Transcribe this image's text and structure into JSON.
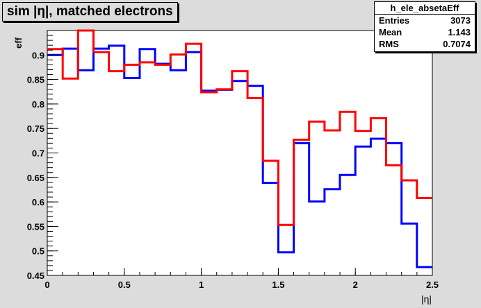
{
  "title": "sim |η|, matched electrons",
  "stats": {
    "name": "h_ele_absetaEff",
    "rows": [
      {
        "label": "Entries",
        "value": "3073"
      },
      {
        "label": "Mean",
        "value": "1.143"
      },
      {
        "label": "RMS",
        "value": "0.7074"
      }
    ]
  },
  "chart_data": {
    "type": "line",
    "step": true,
    "xlabel": "|η|",
    "ylabel": "eff",
    "xlim": [
      0,
      2.5
    ],
    "ylim": [
      0.45,
      0.95
    ],
    "xticks": [
      "0",
      "0.5",
      "1",
      "1.5",
      "2",
      "2.5"
    ],
    "yticks": [
      "0.45",
      "0.5",
      "0.55",
      "0.6",
      "0.65",
      "0.7",
      "0.75",
      "0.8",
      "0.85",
      "0.9"
    ],
    "bin_edges": [
      0,
      0.1,
      0.2,
      0.3,
      0.4,
      0.5,
      0.6,
      0.7,
      0.8,
      0.9,
      1.0,
      1.1,
      1.2,
      1.3,
      1.4,
      1.5,
      1.6,
      1.7,
      1.8,
      1.9,
      2.0,
      2.1,
      2.2,
      2.3,
      2.4,
      2.5
    ],
    "series": [
      {
        "color": "#0000ff",
        "values": [
          0.9,
          0.913,
          0.869,
          0.913,
          0.919,
          0.853,
          0.912,
          0.882,
          0.869,
          0.906,
          0.827,
          0.829,
          0.847,
          0.837,
          0.639,
          0.497,
          0.72,
          0.601,
          0.626,
          0.655,
          0.713,
          0.729,
          0.72,
          0.556,
          0.467
        ]
      },
      {
        "color": "#ff0000",
        "values": [
          0.912,
          0.852,
          0.95,
          0.906,
          0.867,
          0.88,
          0.885,
          0.88,
          0.901,
          0.923,
          0.824,
          0.83,
          0.867,
          0.812,
          0.684,
          0.553,
          0.727,
          0.764,
          0.746,
          0.784,
          0.745,
          0.771,
          0.675,
          0.644,
          0.608
        ]
      }
    ]
  }
}
